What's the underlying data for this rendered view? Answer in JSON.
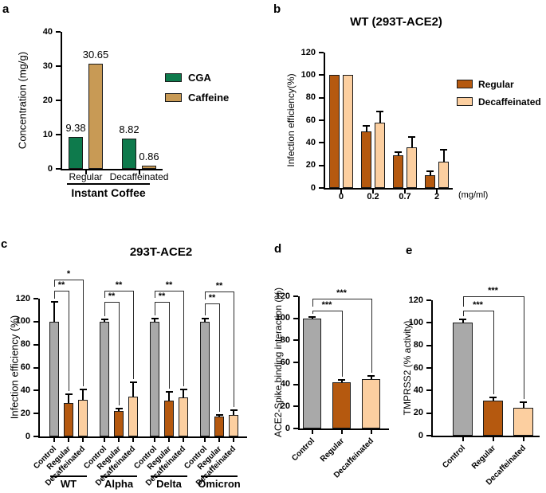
{
  "colors": {
    "cga_green": "#0e7a4c",
    "caffeine_gold": "#c89a55",
    "control_gray": "#a9a9a9",
    "regular_orange": "#b5590f",
    "decaffeinated_tan": "#fccfa0",
    "bar_border": "#1a1a1a",
    "axis": "#000000",
    "significance_line": "#2b2b2b"
  },
  "chart_data": [
    {
      "id": "a",
      "panel_letter": "a",
      "type": "bar",
      "title": "",
      "ylabel": "Concentration (mg/g)",
      "ylim": [
        0,
        40
      ],
      "yticks": [
        0,
        10,
        20,
        30,
        40
      ],
      "x_axis_title": "Instant Coffee",
      "legend": [
        {
          "label": "CGA",
          "color": "#0e7a4c"
        },
        {
          "label": "Caffeine",
          "color": "#c89a55"
        }
      ],
      "groups": [
        {
          "label": "Regular",
          "bars": [
            {
              "series": "CGA",
              "value": 9.38,
              "value_label": "9.38",
              "color": "#0e7a4c"
            },
            {
              "series": "Caffeine",
              "value": 30.65,
              "value_label": "30.65",
              "color": "#c89a55"
            }
          ]
        },
        {
          "label": "Decaffeinated",
          "bars": [
            {
              "series": "CGA",
              "value": 8.82,
              "value_label": "8.82",
              "color": "#0e7a4c"
            },
            {
              "series": "Caffeine",
              "value": 0.86,
              "value_label": "0.86",
              "color": "#c89a55"
            }
          ]
        }
      ]
    },
    {
      "id": "b",
      "panel_letter": "b",
      "type": "bar",
      "title": "WT (293T-ACE2)",
      "ylabel": "Infection efficiency(%)",
      "ylim": [
        0,
        120
      ],
      "yticks": [
        0,
        20,
        40,
        60,
        80,
        100,
        120
      ],
      "x_unit": "(mg/ml)",
      "legend": [
        {
          "label": "Regular",
          "color": "#b5590f"
        },
        {
          "label": "Decaffeinated",
          "color": "#fccfa0"
        }
      ],
      "groups": [
        {
          "label": "0",
          "bars": [
            {
              "series": "Regular",
              "value": 100,
              "error": 0,
              "color": "#b5590f"
            },
            {
              "series": "Decaffeinated",
              "value": 100,
              "error": 0,
              "color": "#fccfa0"
            }
          ]
        },
        {
          "label": "0.2",
          "bars": [
            {
              "series": "Regular",
              "value": 50,
              "error": 5,
              "color": "#b5590f"
            },
            {
              "series": "Decaffeinated",
              "value": 58,
              "error": 10,
              "color": "#fccfa0"
            }
          ]
        },
        {
          "label": "0.7",
          "bars": [
            {
              "series": "Regular",
              "value": 29,
              "error": 3,
              "color": "#b5590f"
            },
            {
              "series": "Decaffeinated",
              "value": 36,
              "error": 9,
              "color": "#fccfa0"
            }
          ]
        },
        {
          "label": "2",
          "bars": [
            {
              "series": "Regular",
              "value": 11,
              "error": 4,
              "color": "#b5590f"
            },
            {
              "series": "Decaffeinated",
              "value": 23,
              "error": 11,
              "color": "#fccfa0"
            }
          ]
        }
      ]
    },
    {
      "id": "c",
      "panel_letter": "c",
      "type": "bar",
      "title": "293T-ACE2",
      "ylabel": "Infection efficiency (%)",
      "ylim": [
        0,
        120
      ],
      "yticks": [
        0,
        20,
        40,
        60,
        80,
        100,
        120
      ],
      "groups": [
        {
          "label": "WT",
          "bars": [
            {
              "tick_label": "Control",
              "value": 100,
              "error": 17,
              "color": "#a9a9a9"
            },
            {
              "tick_label": "Regular",
              "value": 29,
              "error": 8,
              "color": "#b5590f"
            },
            {
              "tick_label": "Decaffeinated",
              "value": 32,
              "error": 9,
              "color": "#fccfa0"
            }
          ],
          "sig": [
            {
              "from": 0,
              "to": 1,
              "label": "**"
            },
            {
              "from": 0,
              "to": 2,
              "label": "*"
            }
          ]
        },
        {
          "label": "Alpha",
          "bars": [
            {
              "tick_label": "Control",
              "value": 100,
              "error": 2,
              "color": "#a9a9a9"
            },
            {
              "tick_label": "Regular",
              "value": 22,
              "error": 2,
              "color": "#b5590f"
            },
            {
              "tick_label": "Decaffeinated",
              "value": 35,
              "error": 12,
              "color": "#fccfa0"
            }
          ],
          "sig": [
            {
              "from": 0,
              "to": 1,
              "label": "**"
            },
            {
              "from": 0,
              "to": 2,
              "label": "**"
            }
          ]
        },
        {
          "label": "Delta",
          "bars": [
            {
              "tick_label": "Control",
              "value": 100,
              "error": 3,
              "color": "#a9a9a9"
            },
            {
              "tick_label": "Regular",
              "value": 31,
              "error": 8,
              "color": "#b5590f"
            },
            {
              "tick_label": "Decaffeinated",
              "value": 34,
              "error": 7,
              "color": "#fccfa0"
            }
          ],
          "sig": [
            {
              "from": 0,
              "to": 1,
              "label": "**"
            },
            {
              "from": 0,
              "to": 2,
              "label": "**"
            }
          ]
        },
        {
          "label": "Omicron",
          "bars": [
            {
              "tick_label": "Control",
              "value": 100,
              "error": 3,
              "color": "#a9a9a9"
            },
            {
              "tick_label": "Regular",
              "value": 17,
              "error": 2,
              "color": "#b5590f"
            },
            {
              "tick_label": "Decaffeinated",
              "value": 19,
              "error": 4,
              "color": "#fccfa0"
            }
          ],
          "sig": [
            {
              "from": 0,
              "to": 1,
              "label": "**"
            },
            {
              "from": 0,
              "to": 2,
              "label": "**"
            }
          ]
        }
      ]
    },
    {
      "id": "d",
      "panel_letter": "d",
      "type": "bar",
      "title": "",
      "ylabel": "ACE2-Spike binding interaction (%)",
      "ylim": [
        0,
        120
      ],
      "yticks": [
        0,
        20,
        40,
        60,
        80,
        100,
        120
      ],
      "groups": [
        {
          "label": "",
          "bars": [
            {
              "tick_label": "Control",
              "value": 100,
              "error": 1,
              "color": "#a9a9a9"
            },
            {
              "tick_label": "Regular",
              "value": 42,
              "error": 2,
              "color": "#b5590f"
            },
            {
              "tick_label": "Decaffeinated",
              "value": 45,
              "error": 3,
              "color": "#fccfa0"
            }
          ],
          "sig": [
            {
              "from": 0,
              "to": 1,
              "label": "***"
            },
            {
              "from": 0,
              "to": 2,
              "label": "***"
            }
          ]
        }
      ]
    },
    {
      "id": "e",
      "panel_letter": "e",
      "type": "bar",
      "title": "",
      "ylabel": "TMPRSS2 (% activity)",
      "ylim": [
        0,
        120
      ],
      "yticks": [
        0,
        20,
        40,
        60,
        80,
        100,
        120
      ],
      "groups": [
        {
          "label": "",
          "bars": [
            {
              "tick_label": "Control",
              "value": 100,
              "error": 3,
              "color": "#a9a9a9"
            },
            {
              "tick_label": "Regular",
              "value": 31,
              "error": 3,
              "color": "#b5590f"
            },
            {
              "tick_label": "Decaffeinated",
              "value": 25,
              "error": 5,
              "color": "#fccfa0"
            }
          ],
          "sig": [
            {
              "from": 0,
              "to": 1,
              "label": "***"
            },
            {
              "from": 0,
              "to": 2,
              "label": "***"
            }
          ]
        }
      ]
    }
  ]
}
